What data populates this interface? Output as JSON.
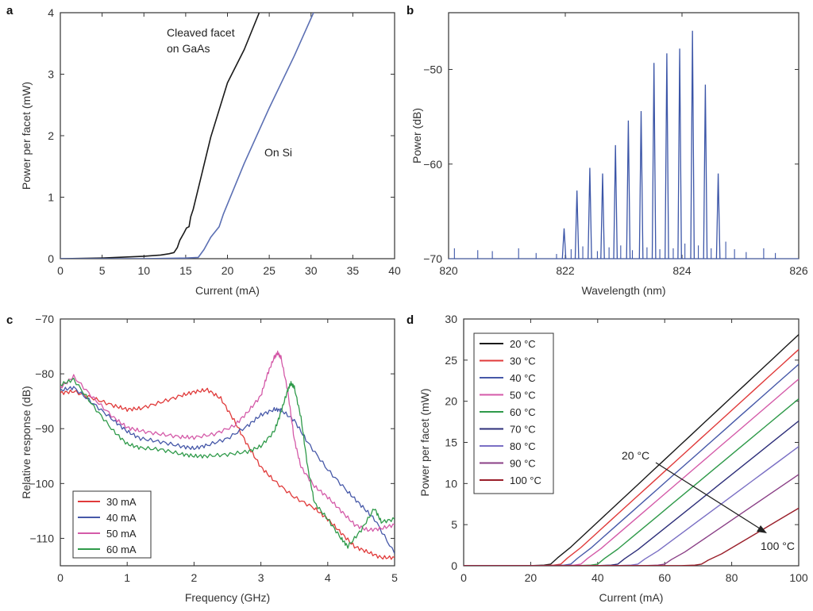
{
  "chart_data": [
    {
      "panel": "a",
      "type": "line",
      "xlabel": "Current (mA)",
      "ylabel": "Power per facet (mW)",
      "xlim": [
        0,
        40
      ],
      "ylim": [
        0,
        4
      ],
      "xticks": [
        0,
        5,
        10,
        15,
        20,
        25,
        30,
        35,
        40
      ],
      "yticks": [
        0,
        1,
        2,
        3,
        4
      ],
      "annotations": [
        "Cleaved facet",
        "on GaAs",
        "On Si"
      ],
      "series": [
        {
          "name": "Cleaved facet on GaAs",
          "color": "#1a1a1a",
          "x": [
            0,
            5,
            10,
            12,
            13,
            13.6,
            14,
            14.3,
            14.8,
            15.1,
            15.4,
            15.6,
            15.9,
            18,
            20,
            22,
            23.8
          ],
          "y": [
            0,
            0.01,
            0.04,
            0.06,
            0.08,
            0.1,
            0.18,
            0.3,
            0.42,
            0.5,
            0.52,
            0.68,
            0.8,
            1.98,
            2.86,
            3.4,
            4.0
          ]
        },
        {
          "name": "On Si",
          "color": "#5b6fb3",
          "x": [
            0,
            5,
            10,
            15,
            16.5,
            17.2,
            18,
            19,
            19.5,
            22,
            25,
            28,
            30.3
          ],
          "y": [
            0,
            0.0,
            0.0,
            0.01,
            0.02,
            0.15,
            0.35,
            0.52,
            0.72,
            1.55,
            2.45,
            3.3,
            4.0
          ]
        }
      ]
    },
    {
      "panel": "b",
      "type": "line",
      "xlabel": "Wavelength (nm)",
      "ylabel": "Power (dB)",
      "xlim": [
        820,
        826
      ],
      "ylim": [
        -70,
        -44
      ],
      "xticks": [
        820,
        822,
        824,
        826
      ],
      "yticks": [
        -70,
        -60,
        -50
      ],
      "color": "#3c56a8",
      "baseline": -70,
      "peaks": [
        {
          "x": 821.98,
          "y": -66.8
        },
        {
          "x": 822.2,
          "y": -62.8
        },
        {
          "x": 822.42,
          "y": -60.4
        },
        {
          "x": 822.64,
          "y": -61.0
        },
        {
          "x": 822.86,
          "y": -58.0
        },
        {
          "x": 823.08,
          "y": -55.4
        },
        {
          "x": 823.3,
          "y": -54.4
        },
        {
          "x": 823.52,
          "y": -49.3
        },
        {
          "x": 823.74,
          "y": -48.3
        },
        {
          "x": 823.96,
          "y": -47.8
        },
        {
          "x": 824.18,
          "y": -45.9
        },
        {
          "x": 824.4,
          "y": -51.6
        },
        {
          "x": 824.62,
          "y": -61.0
        }
      ],
      "spurs": [
        {
          "x": 820.1,
          "y": -68.9
        },
        {
          "x": 820.5,
          "y": -69.1
        },
        {
          "x": 820.75,
          "y": -69.2
        },
        {
          "x": 821.2,
          "y": -68.9
        },
        {
          "x": 821.5,
          "y": -69.4
        },
        {
          "x": 821.85,
          "y": -69.5
        },
        {
          "x": 822.1,
          "y": -69.0
        },
        {
          "x": 822.3,
          "y": -68.7
        },
        {
          "x": 822.55,
          "y": -69.2
        },
        {
          "x": 822.75,
          "y": -68.8
        },
        {
          "x": 822.95,
          "y": -68.6
        },
        {
          "x": 823.15,
          "y": -69.1
        },
        {
          "x": 823.4,
          "y": -68.8
        },
        {
          "x": 823.62,
          "y": -69.0
        },
        {
          "x": 823.85,
          "y": -68.9
        },
        {
          "x": 824.05,
          "y": -68.4
        },
        {
          "x": 824.28,
          "y": -68.6
        },
        {
          "x": 824.5,
          "y": -68.9
        },
        {
          "x": 824.75,
          "y": -68.2
        },
        {
          "x": 824.9,
          "y": -69.0
        },
        {
          "x": 825.1,
          "y": -69.3
        },
        {
          "x": 825.4,
          "y": -68.9
        },
        {
          "x": 825.6,
          "y": -69.4
        }
      ]
    },
    {
      "panel": "c",
      "type": "line",
      "xlabel": "Frequency (GHz)",
      "ylabel": "Relative response (dB)",
      "xlim": [
        0,
        5
      ],
      "ylim": [
        -115,
        -70
      ],
      "xticks": [
        0,
        1,
        2,
        3,
        4,
        5
      ],
      "yticks": [
        -110,
        -100,
        -90,
        -80,
        -70
      ],
      "legend": "bottom-left",
      "series": [
        {
          "name": "30 mA",
          "color": "#e03a3a",
          "x": [
            0,
            0.2,
            0.5,
            0.8,
            1.0,
            1.2,
            1.5,
            1.8,
            2.0,
            2.2,
            2.4,
            2.6,
            2.8,
            3.0,
            3.2,
            3.5,
            3.8,
            4.0,
            4.2,
            4.4,
            4.6,
            4.8,
            5.0
          ],
          "y": [
            -83.5,
            -83.2,
            -84.5,
            -85.8,
            -86.5,
            -86.3,
            -85.2,
            -84,
            -83.3,
            -82.9,
            -84.5,
            -88.5,
            -93,
            -97,
            -99.5,
            -102.5,
            -104.5,
            -106.5,
            -109,
            -111.5,
            -112.5,
            -113.5,
            -113.5
          ]
        },
        {
          "name": "40 mA",
          "color": "#4658a8",
          "x": [
            0,
            0.2,
            0.5,
            0.8,
            1.0,
            1.2,
            1.5,
            1.8,
            2.0,
            2.2,
            2.5,
            2.8,
            3.0,
            3.2,
            3.3,
            3.5,
            3.7,
            4.0,
            4.3,
            4.5,
            4.7,
            5.0
          ],
          "y": [
            -83,
            -82.5,
            -85.5,
            -88.5,
            -90.5,
            -91.8,
            -92.4,
            -93.2,
            -93.6,
            -93,
            -91.8,
            -89.5,
            -87.5,
            -86.5,
            -86.6,
            -88.5,
            -92.5,
            -97.5,
            -101.5,
            -104,
            -106.5,
            -112.8
          ]
        },
        {
          "name": "50 mA",
          "color": "#d45aa8",
          "x": [
            0,
            0.2,
            0.5,
            0.8,
            1.0,
            1.2,
            1.5,
            1.8,
            2.0,
            2.3,
            2.6,
            2.8,
            3.0,
            3.1,
            3.2,
            3.25,
            3.3,
            3.4,
            3.5,
            3.6,
            3.8,
            4.0,
            4.2,
            4.4,
            4.6,
            4.8,
            5.0
          ],
          "y": [
            -82.5,
            -80.5,
            -84.5,
            -88,
            -89.8,
            -90.4,
            -91,
            -91.5,
            -91.6,
            -91,
            -89.5,
            -87,
            -84,
            -80,
            -77,
            -76.2,
            -77,
            -83,
            -92,
            -97,
            -100.5,
            -102.5,
            -105,
            -107.5,
            -108.5,
            -108.2,
            -107.5
          ]
        },
        {
          "name": "60 mA",
          "color": "#2f9a4a",
          "x": [
            0,
            0.2,
            0.5,
            0.8,
            1.0,
            1.2,
            1.5,
            1.8,
            2.0,
            2.2,
            2.5,
            2.8,
            3.0,
            3.2,
            3.3,
            3.4,
            3.45,
            3.5,
            3.6,
            3.7,
            3.8,
            4.0,
            4.2,
            4.3,
            4.5,
            4.7,
            4.8,
            5.0
          ],
          "y": [
            -82,
            -81,
            -86,
            -90.5,
            -92.8,
            -93.5,
            -93.8,
            -94.6,
            -95,
            -95,
            -94.7,
            -94.2,
            -93.2,
            -90.5,
            -87,
            -83,
            -81.7,
            -82.5,
            -88,
            -97,
            -103.5,
            -106.5,
            -110,
            -111.5,
            -108.5,
            -104.5,
            -107,
            -106.5
          ]
        }
      ]
    },
    {
      "panel": "d",
      "type": "line",
      "xlabel": "Current (mA)",
      "ylabel": "Power per facet (mW)",
      "xlim": [
        0,
        100
      ],
      "ylim": [
        0,
        30
      ],
      "xticks": [
        0,
        20,
        40,
        60,
        80,
        100
      ],
      "yticks": [
        0,
        5,
        10,
        15,
        20,
        25,
        30
      ],
      "legend": "top-left",
      "annotations": [
        "20 °C",
        "100 °C"
      ],
      "series": [
        {
          "name": "20 °C",
          "color": "#1a1a1a",
          "threshold": 26,
          "end_power": 28.1
        },
        {
          "name": "30 °C",
          "color": "#e03a3a",
          "threshold": 29,
          "end_power": 26.3
        },
        {
          "name": "40 °C",
          "color": "#4658a8",
          "threshold": 32,
          "end_power": 24.5
        },
        {
          "name": "50 °C",
          "color": "#d45aa8",
          "threshold": 35,
          "end_power": 22.7
        },
        {
          "name": "60 °C",
          "color": "#2f9a4a",
          "threshold": 40,
          "end_power": 20.3
        },
        {
          "name": "70 °C",
          "color": "#2e2f7a",
          "threshold": 46,
          "end_power": 17.6
        },
        {
          "name": "80 °C",
          "color": "#7a6fc4",
          "threshold": 52,
          "end_power": 14.5
        },
        {
          "name": "90 °C",
          "color": "#8a3f86",
          "threshold": 60,
          "end_power": 11.1
        },
        {
          "name": "100 °C",
          "color": "#9a1f2a",
          "threshold": 71,
          "end_power": 7.0
        }
      ]
    }
  ]
}
